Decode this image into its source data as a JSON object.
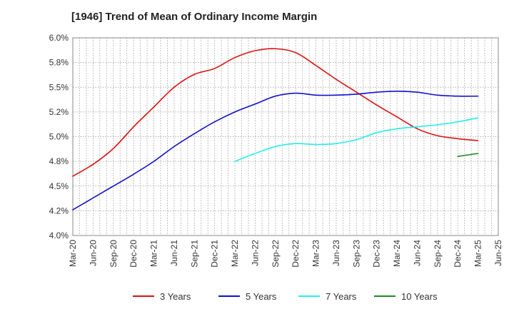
{
  "chart_data": {
    "type": "line",
    "title": "[1946]  Trend of Mean of Ordinary Income Margin",
    "xlabel": "",
    "ylabel": "",
    "ylim": [
      4.0,
      6.0
    ],
    "grid": true,
    "legend_position": "bottom",
    "y_ticks": [
      "4.0%",
      "4.2%",
      "4.5%",
      "4.8%",
      "5.0%",
      "5.2%",
      "5.5%",
      "5.8%",
      "6.0%"
    ],
    "y_tick_values": [
      4.0,
      4.25,
      4.5,
      4.75,
      5.0,
      5.25,
      5.5,
      5.75,
      6.0
    ],
    "x_ticks": [
      "Mar-20",
      "Jun-20",
      "Sep-20",
      "Dec-20",
      "Mar-21",
      "Jun-21",
      "Sep-21",
      "Dec-21",
      "Mar-22",
      "Jun-22",
      "Sep-22",
      "Dec-22",
      "Mar-23",
      "Jun-23",
      "Sep-23",
      "Dec-23",
      "Mar-24",
      "Jun-24",
      "Sep-24",
      "Dec-24",
      "Mar-25",
      "Jun-25"
    ],
    "series": [
      {
        "name": "3 Years",
        "color": "#dd1111",
        "x": [
          "Mar-20",
          "Jun-20",
          "Sep-20",
          "Dec-20",
          "Mar-21",
          "Jun-21",
          "Sep-21",
          "Dec-21",
          "Mar-22",
          "Jun-22",
          "Sep-22",
          "Dec-22",
          "Mar-23",
          "Jun-23",
          "Sep-23",
          "Dec-23",
          "Mar-24",
          "Jun-24",
          "Sep-24",
          "Dec-24",
          "Mar-25"
        ],
        "values": [
          4.6,
          4.72,
          4.88,
          5.1,
          5.3,
          5.5,
          5.63,
          5.69,
          5.8,
          5.87,
          5.89,
          5.85,
          5.72,
          5.58,
          5.45,
          5.32,
          5.2,
          5.08,
          5.01,
          4.98,
          4.96
        ]
      },
      {
        "name": "5 Years",
        "color": "#1111cc",
        "x": [
          "Mar-20",
          "Jun-20",
          "Sep-20",
          "Dec-20",
          "Mar-21",
          "Jun-21",
          "Sep-21",
          "Dec-21",
          "Mar-22",
          "Jun-22",
          "Sep-22",
          "Dec-22",
          "Mar-23",
          "Jun-23",
          "Sep-23",
          "Dec-23",
          "Mar-24",
          "Jun-24",
          "Sep-24",
          "Dec-24",
          "Mar-25"
        ],
        "values": [
          4.26,
          4.38,
          4.5,
          4.62,
          4.75,
          4.9,
          5.03,
          5.15,
          5.25,
          5.33,
          5.41,
          5.44,
          5.42,
          5.42,
          5.43,
          5.45,
          5.46,
          5.45,
          5.42,
          5.41,
          5.41
        ]
      },
      {
        "name": "7 Years",
        "color": "#22eeee",
        "x": [
          "Mar-22",
          "Jun-22",
          "Sep-22",
          "Dec-22",
          "Mar-23",
          "Jun-23",
          "Sep-23",
          "Dec-23",
          "Mar-24",
          "Jun-24",
          "Sep-24",
          "Dec-24",
          "Mar-25"
        ],
        "values": [
          4.75,
          4.83,
          4.9,
          4.93,
          4.92,
          4.93,
          4.97,
          5.04,
          5.08,
          5.1,
          5.12,
          5.15,
          5.19
        ]
      },
      {
        "name": "10 Years",
        "color": "#228822",
        "x": [
          "Dec-24",
          "Mar-25"
        ],
        "values": [
          4.8,
          4.83
        ]
      }
    ]
  }
}
